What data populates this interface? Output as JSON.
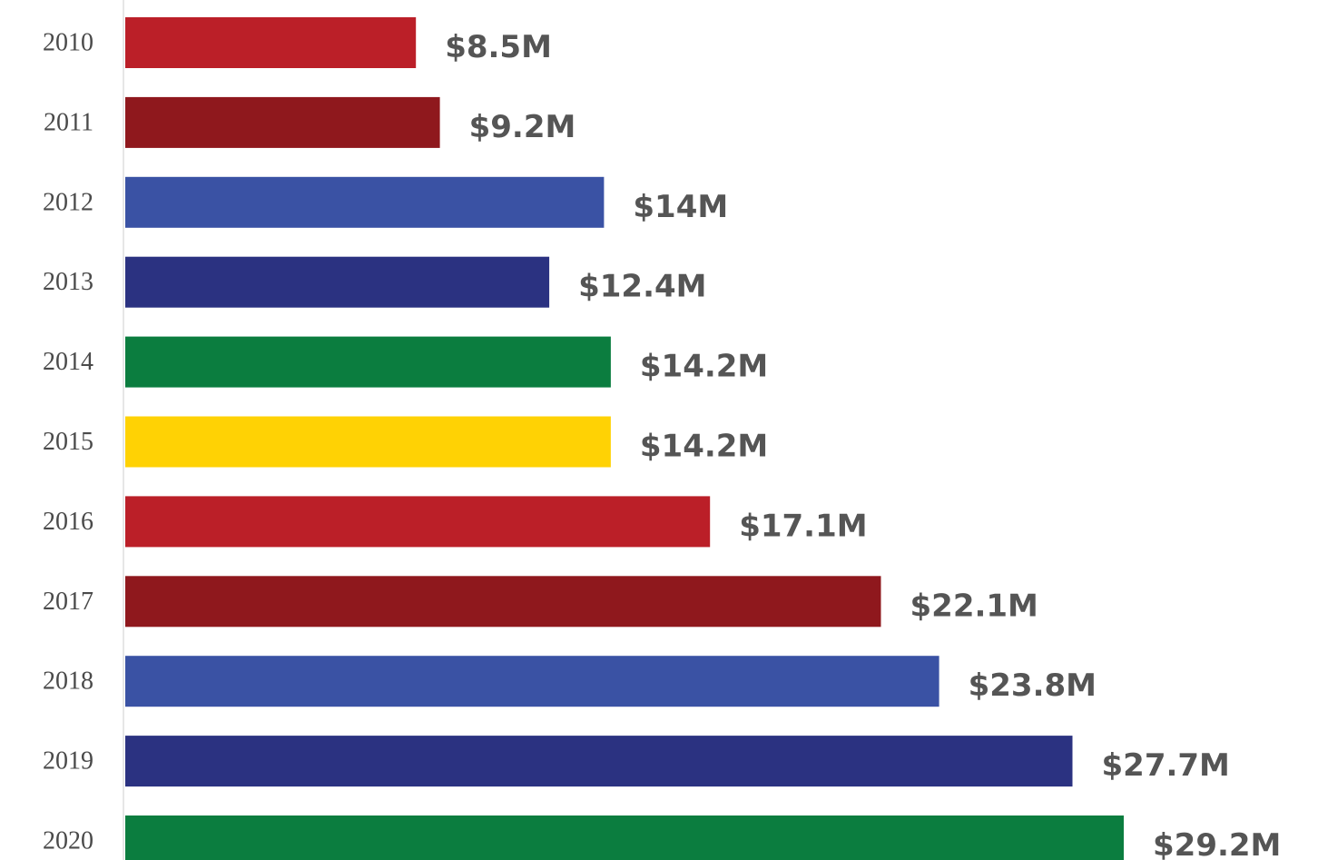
{
  "chart_data": {
    "type": "bar",
    "orientation": "horizontal",
    "categories": [
      "2010",
      "2011",
      "2012",
      "2013",
      "2014",
      "2015",
      "2016",
      "2017",
      "2018",
      "2019",
      "2020"
    ],
    "values": [
      8.5,
      9.2,
      14,
      12.4,
      14.2,
      14.2,
      17.1,
      22.1,
      23.8,
      27.7,
      29.2
    ],
    "value_labels": [
      "$8.5M",
      "$9.2M",
      "$14M",
      "$12.4M",
      "$14.2M",
      "$14.2M",
      "$17.1M",
      "$22.1M",
      "$23.8M",
      "$27.7M",
      "$29.2M"
    ],
    "bar_colors": [
      "#bb1f28",
      "#8f181d",
      "#3a52a4",
      "#2b3281",
      "#0b7d3f",
      "#ffd204",
      "#bb1f28",
      "#8f181d",
      "#3a52a4",
      "#2b3281",
      "#0b7d3f"
    ],
    "title": "",
    "xlabel": "",
    "ylabel": "",
    "xlim": [
      0,
      29.2
    ],
    "grid": false,
    "legend": "none"
  }
}
